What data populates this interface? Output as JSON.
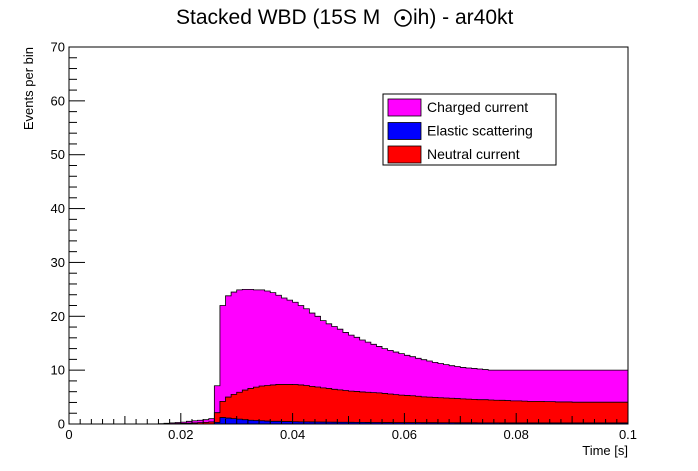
{
  "chart_data": {
    "type": "area",
    "title_main": "Stacked WBD (15S M",
    "title_tail": "ih) - ar40kt",
    "xlabel": "Time [s]",
    "ylabel": "Events per bin",
    "xlim": [
      0,
      0.1
    ],
    "ylim": [
      0,
      70
    ],
    "x_ticks": [
      "0",
      "0.02",
      "0.04",
      "0.06",
      "0.08",
      "0.1"
    ],
    "y_ticks": [
      "0",
      "10",
      "20",
      "30",
      "40",
      "50",
      "60",
      "70"
    ],
    "bin_width": 0.001,
    "x_start": 0.0,
    "stacked": true,
    "legend_position": "top-right",
    "series": [
      {
        "name": "Elastic scattering",
        "color": "#0000ff",
        "values": [
          0,
          0,
          0,
          0,
          0,
          0,
          0,
          0,
          0,
          0,
          0,
          0,
          0,
          0,
          0,
          0,
          0,
          0,
          0,
          0,
          0,
          0,
          0,
          0,
          0,
          0,
          0.3,
          1.2,
          1.1,
          1.0,
          0.9,
          0.8,
          0.7,
          0.65,
          0.6,
          0.55,
          0.5,
          0.5,
          0.45,
          0.45,
          0.42,
          0.4,
          0.4,
          0.38,
          0.37,
          0.36,
          0.35,
          0.34,
          0.33,
          0.32,
          0.31,
          0.3,
          0.3,
          0.29,
          0.28,
          0.28,
          0.27,
          0.27,
          0.26,
          0.26,
          0.25,
          0.25,
          0.25,
          0.24,
          0.24,
          0.24,
          0.23,
          0.23,
          0.23,
          0.22,
          0.22,
          0.22,
          0.22,
          0.21,
          0.21,
          0.21,
          0.21,
          0.2,
          0.2,
          0.2,
          0.2,
          0.2,
          0.2,
          0.2,
          0.2,
          0.2,
          0.2,
          0.2,
          0.2,
          0.2,
          0.2,
          0.2,
          0.2,
          0.2,
          0.2,
          0.2,
          0.2,
          0.2,
          0.2,
          0.2
        ]
      },
      {
        "name": "Neutral current",
        "color": "#ff0000",
        "values": [
          0,
          0,
          0,
          0,
          0,
          0,
          0,
          0,
          0,
          0,
          0,
          0,
          0,
          0,
          0,
          0,
          0.02,
          0.04,
          0.06,
          0.08,
          0.1,
          0.15,
          0.2,
          0.25,
          0.3,
          0.4,
          1.8,
          3.0,
          3.9,
          4.5,
          5.0,
          5.5,
          5.9,
          6.2,
          6.45,
          6.6,
          6.75,
          6.85,
          6.9,
          6.9,
          6.9,
          6.85,
          6.75,
          6.6,
          6.5,
          6.35,
          6.25,
          6.1,
          6.0,
          5.9,
          5.8,
          5.75,
          5.65,
          5.6,
          5.55,
          5.5,
          5.4,
          5.3,
          5.2,
          5.1,
          5.05,
          5.0,
          4.9,
          4.8,
          4.75,
          4.7,
          4.65,
          4.6,
          4.55,
          4.5,
          4.45,
          4.4,
          4.35,
          4.3,
          4.3,
          4.25,
          4.2,
          4.2,
          4.15,
          4.1,
          4.1,
          4.05,
          4.0,
          4.0,
          4.0,
          3.95,
          3.95,
          3.9,
          3.9,
          3.9,
          3.85,
          3.85,
          3.85,
          3.85,
          3.85,
          3.85,
          3.85,
          3.85,
          3.85,
          3.85
        ]
      },
      {
        "name": "Charged current",
        "color": "#ff00ff",
        "values": [
          0,
          0,
          0,
          0,
          0,
          0,
          0,
          0,
          0,
          0,
          0,
          0,
          0,
          0,
          0,
          0,
          0.05,
          0.1,
          0.15,
          0.2,
          0.25,
          0.35,
          0.4,
          0.45,
          0.5,
          0.6,
          5.0,
          17.8,
          18.8,
          19.0,
          19.0,
          18.7,
          18.4,
          18.05,
          17.85,
          17.55,
          17.15,
          16.55,
          16.05,
          15.65,
          15.28,
          14.75,
          14.25,
          13.62,
          13.13,
          12.49,
          12.0,
          11.66,
          11.27,
          10.78,
          10.39,
          10.05,
          9.65,
          9.31,
          8.97,
          8.62,
          8.33,
          8.1,
          7.9,
          7.7,
          7.45,
          7.25,
          7.05,
          6.9,
          6.71,
          6.5,
          6.35,
          6.2,
          6.05,
          5.95,
          5.83,
          5.78,
          5.75,
          5.7,
          5.6,
          5.55,
          5.59,
          5.6,
          5.65,
          5.7,
          5.7,
          5.75,
          5.8,
          5.8,
          5.8,
          5.85,
          5.85,
          5.9,
          5.9,
          5.9,
          5.95,
          5.95,
          5.95,
          5.95,
          5.95,
          5.95,
          5.95,
          5.95,
          5.95,
          5.95
        ]
      }
    ],
    "legend_order": [
      "Charged current",
      "Elastic scattering",
      "Neutral current"
    ]
  }
}
